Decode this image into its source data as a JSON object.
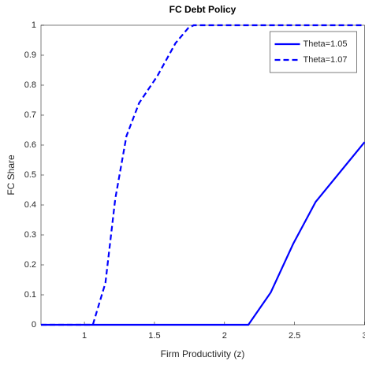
{
  "chart_data": {
    "type": "line",
    "title": "FC Debt Policy",
    "x_label": "Firm Productivity (z)",
    "y_label": "FC Share",
    "xlim": [
      0.69,
      3
    ],
    "xticks": [
      1,
      1.5,
      2,
      2.5,
      3
    ],
    "ylim": [
      0,
      1
    ],
    "yticks": [
      0,
      0.1,
      0.2,
      0.3,
      0.4,
      0.5,
      0.6,
      0.7,
      0.8,
      0.9,
      1
    ],
    "grid": false,
    "legend": "northeast",
    "series": [
      {
        "name": "Theta=1.05",
        "color": "#0000ff",
        "dash": "solid",
        "x": [
          0.69,
          2.17,
          2.33,
          2.49,
          2.65,
          3.0
        ],
        "values": [
          0,
          0,
          0.108,
          0.27,
          0.41,
          0.61
        ]
      },
      {
        "name": "Theta=1.07",
        "color": "#0000ff",
        "dash": "dashed",
        "x": [
          0.69,
          1.06,
          1.15,
          1.22,
          1.3,
          1.39,
          1.52,
          1.65,
          1.74,
          1.78,
          3.0
        ],
        "values": [
          0,
          0,
          0.14,
          0.42,
          0.63,
          0.74,
          0.83,
          0.94,
          0.99,
          1,
          1
        ]
      }
    ]
  }
}
